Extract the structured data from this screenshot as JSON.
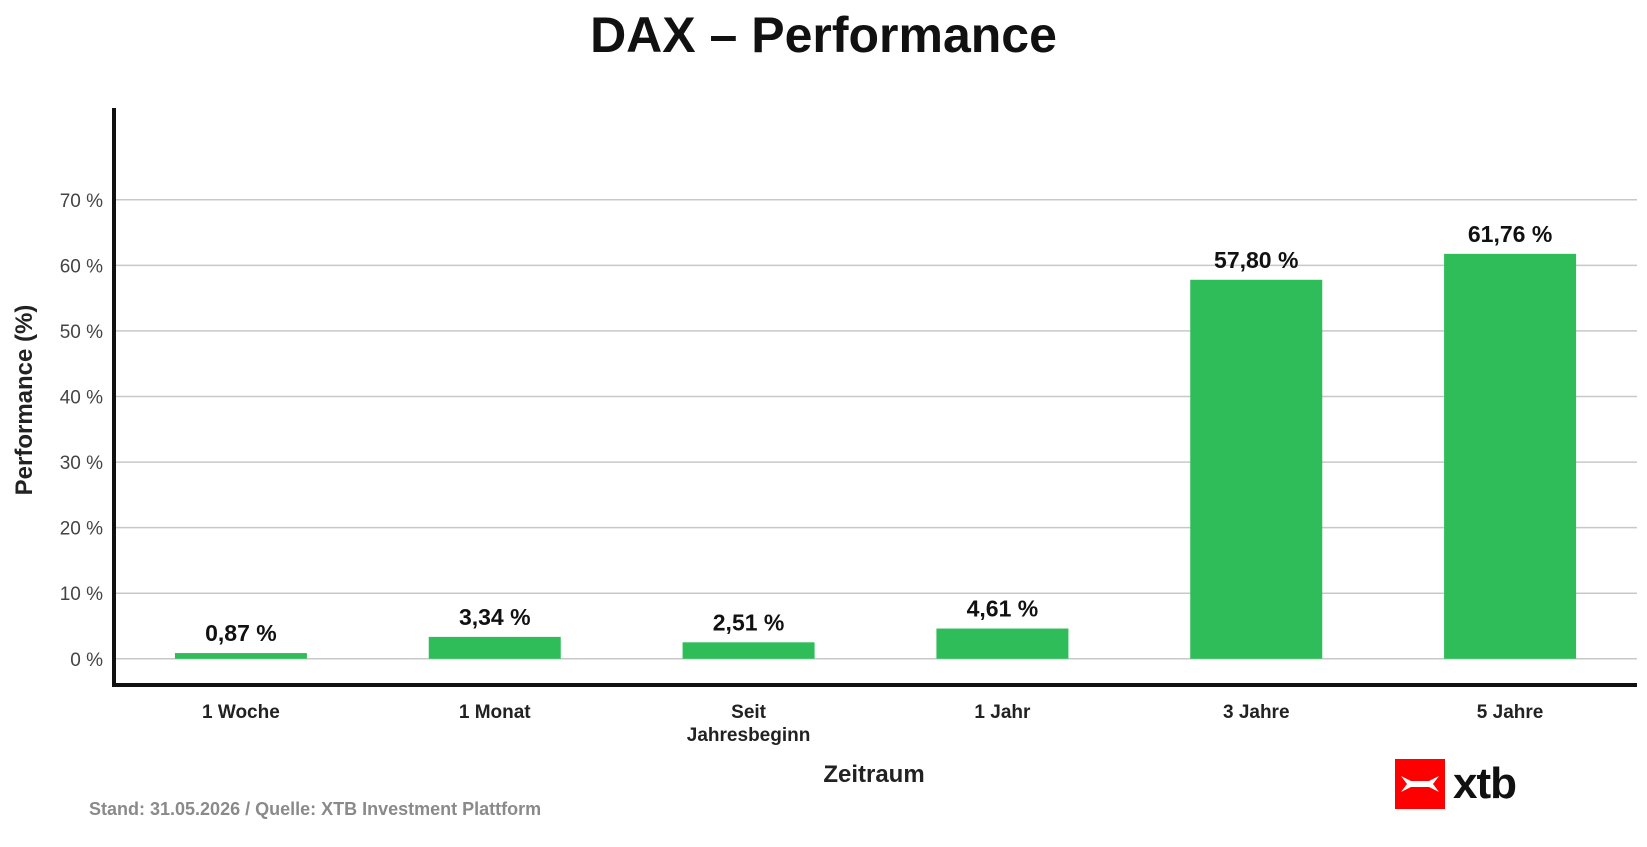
{
  "chart_data": {
    "type": "bar",
    "title": "DAX – Performance",
    "xlabel": "Zeitraum",
    "ylabel": "Performance (%)",
    "categories": [
      [
        "1 Woche"
      ],
      [
        "1 Monat"
      ],
      [
        "Seit",
        "Jahresbeginn"
      ],
      [
        "1 Jahr"
      ],
      [
        "3 Jahre"
      ],
      [
        "5 Jahre"
      ]
    ],
    "values": [
      0.87,
      3.34,
      2.51,
      4.61,
      57.8,
      61.76
    ],
    "value_labels": [
      "0,87 %",
      "3,34 %",
      "2,51 %",
      "4,61 %",
      "57,80 %",
      "61,76 %"
    ],
    "yticks": [
      0,
      10,
      20,
      30,
      40,
      50,
      60,
      70
    ],
    "ytick_labels": [
      "0 %",
      "10 %",
      "20 %",
      "30 %",
      "40 %",
      "50 %",
      "60 %",
      "70 %"
    ],
    "ylim": [
      -4,
      84
    ],
    "grid": true,
    "bar_color": "#2ebd59"
  },
  "footer": {
    "note": "Stand: 31.05.2026 / Quelle: XTB Investment Plattform"
  },
  "brand": {
    "name": "xtb",
    "mark_color": "#ff0000"
  }
}
